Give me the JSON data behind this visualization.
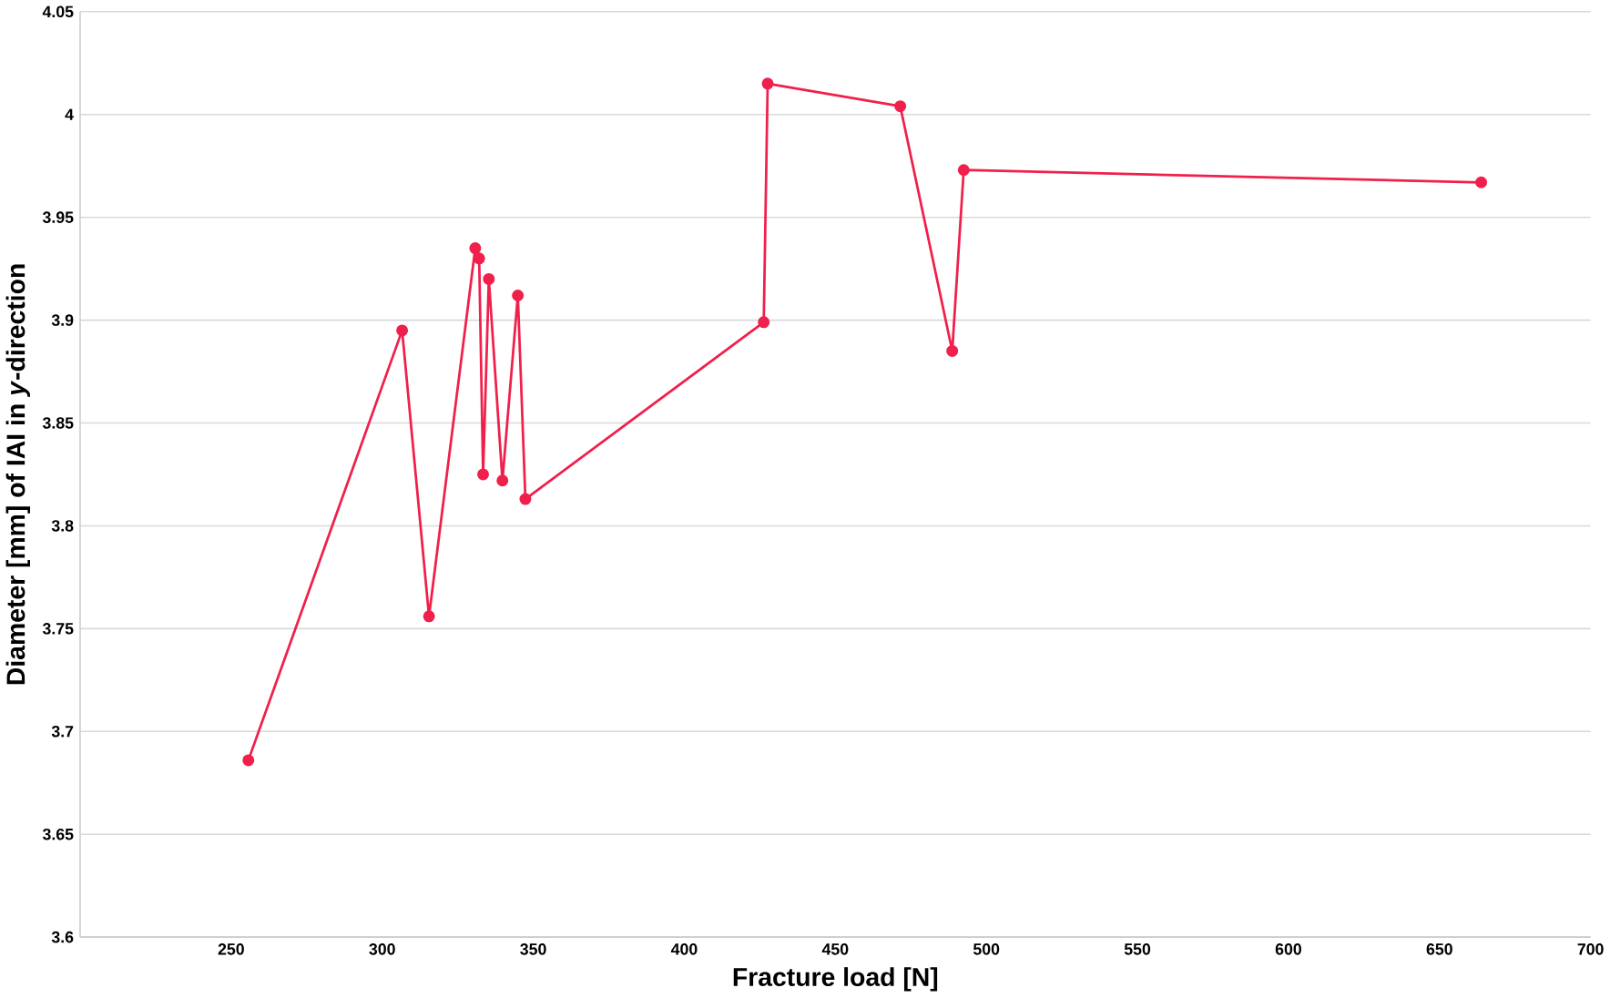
{
  "chart_data": {
    "type": "line",
    "xlabel": "Fracture load [N]",
    "ylabel": "Diameter [mm] of IAI in *y*-direction",
    "x": [
      255.7,
      306.6,
      315.5,
      330.8,
      332.1,
      333.4,
      335.3,
      339.8,
      344.9,
      347.4,
      426.3,
      427.6,
      471.5,
      488.7,
      492.5,
      663.8
    ],
    "values": [
      3.686,
      3.895,
      3.756,
      3.935,
      3.93,
      3.825,
      3.92,
      3.822,
      3.912,
      3.813,
      3.899,
      4.015,
      4.004,
      3.885,
      3.973,
      3.967
    ],
    "color": "#f0204c",
    "marker": "circle",
    "line_style": "solid",
    "grid": "y",
    "xlim": [
      200,
      700
    ],
    "xticks": [
      250,
      300,
      350,
      400,
      450,
      500,
      550,
      600,
      650,
      700
    ],
    "ylim": [
      3.6,
      4.05
    ],
    "yticks": [
      3.6,
      3.65,
      3.7,
      3.75,
      3.8,
      3.85,
      3.9,
      3.95,
      4,
      4.05
    ]
  }
}
